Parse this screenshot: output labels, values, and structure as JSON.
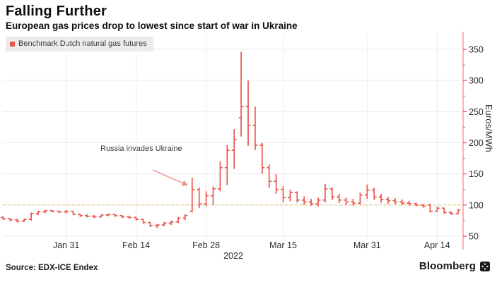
{
  "header": {
    "title": "Falling Further",
    "subtitle": "European gas prices drop to lowest since start of war in Ukraine"
  },
  "legend": {
    "label": "Benchmark Dutch natural gas futures"
  },
  "annotation": {
    "text": "Russia invades Ukraine"
  },
  "footer": {
    "source": "Source: EDX-ICE Endex",
    "brand": "Bloomberg"
  },
  "colors": {
    "bar_red": "#e8574e",
    "axis_red": "#f28b84",
    "tick_red": "#e8574e",
    "arrow_red": "#ef8d85",
    "reference_yellow": "#e4c77d",
    "grid": "#ececec",
    "tick_text": "#2e2e2e"
  },
  "chart_data": {
    "type": "ohlc",
    "title": "Falling Further",
    "subtitle": "European gas prices drop to lowest since start of war in Ukraine",
    "series_name": "Benchmark Dutch natural gas futures",
    "ylabel": "Euros/MWh",
    "yticks": [
      50,
      100,
      150,
      200,
      250,
      300,
      350
    ],
    "ytick_minor_step": 25,
    "ylim": [
      27,
      378
    ],
    "grid": true,
    "legend_position": "top-left",
    "axis_side": "right",
    "reference_line": {
      "value": 100,
      "style": "dashed"
    },
    "annotation": {
      "text": "Russia invades Ukraine",
      "points_to_date": "Feb 24",
      "arrow": true
    },
    "year_label": "2022",
    "xticks": [
      {
        "label": "Jan 31",
        "i": 9
      },
      {
        "label": "Feb 14",
        "i": 19
      },
      {
        "label": "Feb 28",
        "i": 29
      },
      {
        "label": "Mar 15",
        "i": 40
      },
      {
        "label": "Mar 31",
        "i": 52
      },
      {
        "label": "Apr 14",
        "i": 62
      }
    ],
    "bar_format": [
      "date",
      "open",
      "high",
      "low",
      "close"
    ],
    "bars": [
      [
        "Jan 18",
        80,
        82,
        76,
        78
      ],
      [
        "Jan 19",
        78,
        79,
        74,
        76
      ],
      [
        "Jan 20",
        76,
        78,
        72,
        74
      ],
      [
        "Jan 21",
        74,
        78,
        73,
        77
      ],
      [
        "Jan 24",
        77,
        88,
        75,
        86
      ],
      [
        "Jan 25",
        86,
        91,
        84,
        89
      ],
      [
        "Jan 26",
        89,
        92,
        87,
        91
      ],
      [
        "Jan 27",
        91,
        92,
        88,
        90
      ],
      [
        "Jan 28",
        90,
        91,
        87,
        89
      ],
      [
        "Jan 31",
        89,
        92,
        86,
        90
      ],
      [
        "Feb 1",
        90,
        91,
        84,
        85
      ],
      [
        "Feb 2",
        85,
        86,
        81,
        83
      ],
      [
        "Feb 3",
        83,
        85,
        80,
        82
      ],
      [
        "Feb 4",
        82,
        84,
        79,
        81
      ],
      [
        "Feb 7",
        81,
        85,
        80,
        84
      ],
      [
        "Feb 8",
        84,
        86,
        82,
        85
      ],
      [
        "Feb 9",
        85,
        86,
        81,
        83
      ],
      [
        "Feb 10",
        83,
        84,
        79,
        81
      ],
      [
        "Feb 11",
        81,
        83,
        78,
        80
      ],
      [
        "Feb 14",
        80,
        81,
        75,
        77
      ],
      [
        "Feb 15",
        77,
        78,
        70,
        72
      ],
      [
        "Feb 16",
        72,
        73,
        65,
        67
      ],
      [
        "Feb 17",
        67,
        70,
        63,
        68
      ],
      [
        "Feb 18",
        68,
        73,
        66,
        71
      ],
      [
        "Feb 21",
        71,
        75,
        68,
        73
      ],
      [
        "Feb 22",
        73,
        81,
        71,
        79
      ],
      [
        "Feb 23",
        79,
        85,
        76,
        83
      ],
      [
        "Feb 24",
        90,
        144,
        88,
        125
      ],
      [
        "Feb 25",
        125,
        128,
        95,
        102
      ],
      [
        "Feb 28",
        102,
        122,
        98,
        115
      ],
      [
        "Mar 1",
        115,
        130,
        100,
        126
      ],
      [
        "Mar 2",
        126,
        170,
        122,
        160
      ],
      [
        "Mar 3",
        160,
        196,
        132,
        188
      ],
      [
        "Mar 4",
        188,
        222,
        158,
        205
      ],
      [
        "Mar 7",
        240,
        346,
        210,
        258
      ],
      [
        "Mar 8",
        258,
        300,
        195,
        228
      ],
      [
        "Mar 9",
        228,
        258,
        188,
        196
      ],
      [
        "Mar 10",
        196,
        200,
        150,
        160
      ],
      [
        "Mar 11",
        160,
        165,
        128,
        138
      ],
      [
        "Mar 14",
        138,
        150,
        118,
        125
      ],
      [
        "Mar 15",
        125,
        130,
        104,
        112
      ],
      [
        "Mar 16",
        112,
        125,
        106,
        120
      ],
      [
        "Mar 17",
        120,
        122,
        104,
        108
      ],
      [
        "Mar 18",
        108,
        114,
        100,
        105
      ],
      [
        "Mar 21",
        105,
        110,
        99,
        102
      ],
      [
        "Mar 22",
        102,
        112,
        98,
        108
      ],
      [
        "Mar 23",
        108,
        134,
        104,
        126
      ],
      [
        "Mar 24",
        126,
        128,
        108,
        113
      ],
      [
        "Mar 25",
        113,
        118,
        103,
        108
      ],
      [
        "Mar 28",
        108,
        112,
        100,
        105
      ],
      [
        "Mar 29",
        105,
        110,
        99,
        103
      ],
      [
        "Mar 30",
        103,
        120,
        101,
        116
      ],
      [
        "Mar 31",
        116,
        133,
        110,
        124
      ],
      [
        "Apr 1",
        124,
        128,
        108,
        113
      ],
      [
        "Apr 4",
        113,
        118,
        104,
        109
      ],
      [
        "Apr 5",
        109,
        113,
        102,
        107
      ],
      [
        "Apr 6",
        107,
        111,
        101,
        105
      ],
      [
        "Apr 7",
        105,
        109,
        100,
        103
      ],
      [
        "Apr 8",
        103,
        107,
        99,
        102
      ],
      [
        "Apr 11",
        102,
        104,
        98,
        100
      ],
      [
        "Apr 12",
        100,
        102,
        96,
        98
      ],
      [
        "Apr 13",
        100,
        102,
        88,
        90
      ],
      [
        "Apr 14",
        90,
        97,
        89,
        95
      ],
      [
        "Apr 19",
        95,
        96,
        86,
        88
      ],
      [
        "Apr 20",
        88,
        90,
        84,
        86
      ],
      [
        "Apr 21",
        86,
        93,
        85,
        92
      ]
    ]
  }
}
